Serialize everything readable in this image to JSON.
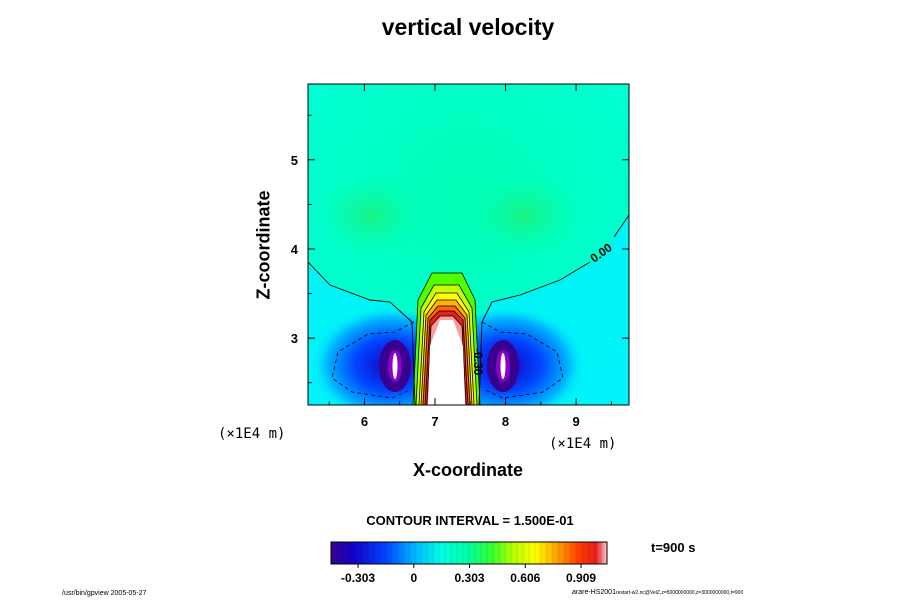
{
  "chart_data": {
    "type": "contour",
    "title": "vertical velocity",
    "xlabel": "X-coordinate",
    "ylabel": "Z-coordinate",
    "x_unit": "(×1E4 m)",
    "x_ticks": [
      6,
      7,
      8,
      9
    ],
    "y_ticks": [
      3,
      4,
      5
    ],
    "xlim": [
      5.2,
      9.75
    ],
    "ylim": [
      2.25,
      5.85
    ],
    "contour_interval_label": "CONTOUR INTERVAL = 1.500E-01",
    "contour_labels": [
      "0.00",
      "-0.30"
    ],
    "colorbar": {
      "min": -0.45,
      "max": 1.05,
      "tick_values": [
        -0.303,
        0,
        0.303,
        0.606,
        0.909
      ],
      "tick_labels": [
        "-0.303",
        "0",
        "0.303",
        "0.606",
        "0.909"
      ]
    },
    "time_label": "t=900 s"
  },
  "footer": {
    "left": "/usr/bin/gpview 2005-05-27",
    "right_main": "arare-HS2001",
    "right_sub": "restart-w2.nc@VelZ,z=5000000000,z=3000000000,t=900"
  },
  "colors": {
    "background_field": "#00ffd6",
    "updraft_core": "#ffffff",
    "downdraft_core": "#3a0090"
  }
}
